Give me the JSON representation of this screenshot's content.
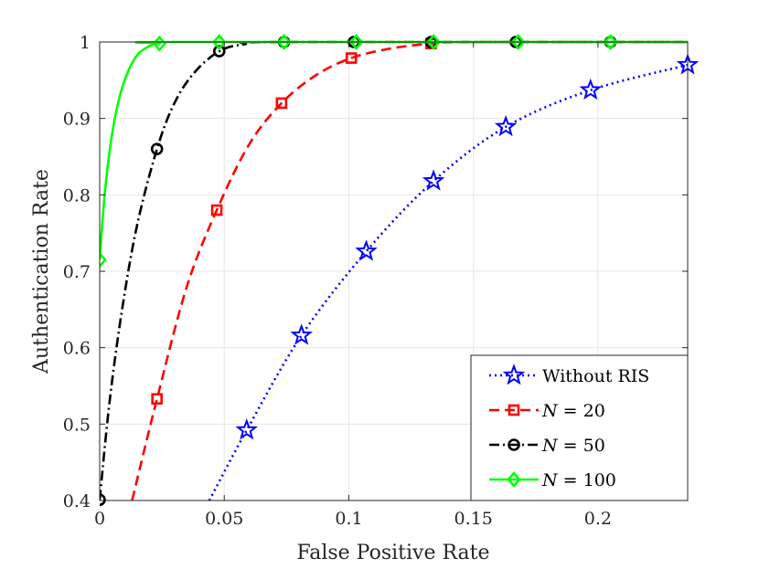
{
  "chart_data": {
    "type": "line",
    "xlabel": "False Positive Rate",
    "ylabel": "Authentication Rate",
    "xlim": [
      0,
      0.236
    ],
    "ylim": [
      0.4,
      1.0
    ],
    "xticks": [
      0,
      0.05,
      0.1,
      0.15,
      0.2
    ],
    "xtick_labels": [
      "0",
      "0.05",
      "0.1",
      "0.15",
      "0.2"
    ],
    "yticks": [
      0.4,
      0.5,
      0.6,
      0.7,
      0.8,
      0.9,
      1.0
    ],
    "ytick_labels": [
      "0.4",
      "0.5",
      "0.6",
      "0.7",
      "0.8",
      "0.9",
      "1"
    ],
    "grid": true,
    "legend_position": "bottom-right",
    "series": [
      {
        "name": "Without RIS",
        "color": "#0000ff",
        "dash": "dotted",
        "marker": "star",
        "markers": [
          [
            0.059,
            0.492
          ],
          [
            0.081,
            0.616
          ],
          [
            0.107,
            0.726
          ],
          [
            0.134,
            0.818
          ],
          [
            0.163,
            0.889
          ],
          [
            0.197,
            0.937
          ],
          [
            0.236,
            0.97
          ]
        ],
        "curve": [
          [
            0.044,
            0.4
          ],
          [
            0.059,
            0.492
          ],
          [
            0.081,
            0.616
          ],
          [
            0.107,
            0.726
          ],
          [
            0.134,
            0.818
          ],
          [
            0.163,
            0.889
          ],
          [
            0.197,
            0.937
          ],
          [
            0.236,
            0.97
          ]
        ]
      },
      {
        "name_prefix": "N",
        "name_suffix": " = 20",
        "color": "#ff0000",
        "dash": "dashed",
        "marker": "square",
        "markers": [
          [
            0.023,
            0.533
          ],
          [
            0.047,
            0.78
          ],
          [
            0.073,
            0.92
          ],
          [
            0.101,
            0.979
          ],
          [
            0.133,
            0.998
          ]
        ],
        "curve": [
          [
            0.013,
            0.4
          ],
          [
            0.023,
            0.533
          ],
          [
            0.035,
            0.68
          ],
          [
            0.047,
            0.78
          ],
          [
            0.06,
            0.866
          ],
          [
            0.073,
            0.92
          ],
          [
            0.087,
            0.957
          ],
          [
            0.101,
            0.979
          ],
          [
            0.116,
            0.991
          ],
          [
            0.133,
            0.998
          ],
          [
            0.15,
            1.0
          ],
          [
            0.236,
            1.0
          ]
        ]
      },
      {
        "name_prefix": "N",
        "name_suffix": " = 50",
        "color": "#000000",
        "dash": "dashdot",
        "marker": "circle",
        "markers": [
          [
            0.0,
            0.401
          ],
          [
            0.023,
            0.86
          ],
          [
            0.048,
            0.988
          ],
          [
            0.074,
            1.0
          ],
          [
            0.102,
            1.0
          ],
          [
            0.133,
            1.0
          ],
          [
            0.167,
            1.0
          ],
          [
            0.205,
            1.0
          ]
        ],
        "curve": [
          [
            0.0,
            0.401
          ],
          [
            0.004,
            0.53
          ],
          [
            0.009,
            0.65
          ],
          [
            0.015,
            0.76
          ],
          [
            0.023,
            0.86
          ],
          [
            0.03,
            0.92
          ],
          [
            0.038,
            0.96
          ],
          [
            0.048,
            0.988
          ],
          [
            0.058,
            0.997
          ],
          [
            0.074,
            1.0
          ],
          [
            0.236,
            1.0
          ]
        ]
      },
      {
        "name_prefix": "N",
        "name_suffix": " = 100",
        "color": "#00ff00",
        "dash": "solid",
        "marker": "diamond",
        "markers": [
          [
            0.0,
            0.715
          ],
          [
            0.024,
            0.998
          ],
          [
            0.048,
            1.0
          ],
          [
            0.074,
            1.0
          ],
          [
            0.103,
            1.0
          ],
          [
            0.134,
            1.0
          ],
          [
            0.168,
            1.0
          ],
          [
            0.205,
            1.0
          ]
        ],
        "curve": [
          [
            0.0,
            0.715
          ],
          [
            0.002,
            0.8
          ],
          [
            0.005,
            0.88
          ],
          [
            0.009,
            0.94
          ],
          [
            0.014,
            0.978
          ],
          [
            0.019,
            0.993
          ],
          [
            0.024,
            0.998
          ],
          [
            0.032,
            1.0
          ],
          [
            0.236,
            1.0
          ]
        ]
      }
    ]
  }
}
